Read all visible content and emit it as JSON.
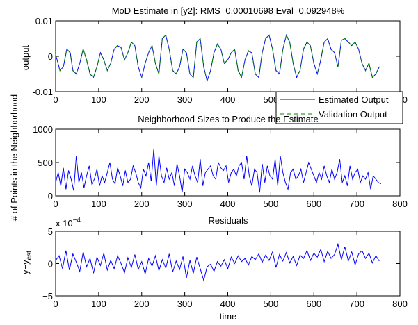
{
  "figure": {
    "xlabel": "time"
  },
  "colors": {
    "estimated": "#0000ff",
    "validation": "#008000",
    "axes": "#000000"
  },
  "chart_data": [
    {
      "type": "line",
      "title": "MoD Estimate in [y2]:  RMS=0.00010698   Eval=0.092948%",
      "xlabel": "",
      "ylabel": "output",
      "xlim": [
        0,
        800
      ],
      "ylim": [
        -0.01,
        0.01
      ],
      "xticks": [
        0,
        100,
        200,
        300,
        400,
        500,
        600,
        700,
        800
      ],
      "yticks": [
        -0.01,
        0,
        0.01
      ],
      "ytick_labels": [
        "-0.01",
        "0",
        "0.01"
      ],
      "legend": {
        "placement": "bottom-right",
        "entries": [
          "Estimated Output",
          "Validation Output"
        ]
      },
      "series": [
        {
          "name": "Estimated Output",
          "style": "solid",
          "color": "#0000ff",
          "x": [
            0,
            10,
            18,
            26,
            34,
            40,
            48,
            56,
            64,
            72,
            80,
            88,
            96,
            104,
            112,
            120,
            128,
            136,
            144,
            152,
            160,
            168,
            176,
            184,
            192,
            200,
            208,
            216,
            224,
            232,
            240,
            248,
            256,
            264,
            272,
            280,
            288,
            296,
            304,
            312,
            320,
            328,
            336,
            344,
            352,
            360,
            368,
            376,
            384,
            392,
            400,
            408,
            416,
            424,
            432,
            440,
            448,
            456,
            464,
            472,
            480,
            488,
            496,
            504,
            512,
            520,
            528,
            536,
            544,
            552,
            560,
            568,
            576,
            584,
            592,
            600,
            608,
            616,
            624,
            632,
            640,
            648,
            656,
            664,
            672,
            680,
            688,
            696,
            704,
            712,
            720,
            728,
            736,
            744,
            752
          ],
          "y": [
            0.0005,
            -0.004,
            -0.003,
            0.002,
            0.001,
            -0.004,
            -0.005,
            -0.002,
            0.002,
            -0.001,
            -0.005,
            -0.006,
            -0.003,
            0.001,
            -0.001,
            -0.004,
            -0.002,
            0.002,
            0.003,
            0.0025,
            -0.001,
            0.001,
            0.004,
            0.003,
            -0.003,
            -0.006,
            -0.002,
            0.001,
            0.003,
            -0.002,
            -0.005,
            0.005,
            0.006,
            0.002,
            -0.004,
            -0.005,
            -0.003,
            0.002,
            0.001,
            -0.005,
            -0.006,
            0.004,
            0.005,
            -0.003,
            -0.007,
            -0.004,
            0.001,
            0.0035,
            0.002,
            -0.002,
            -0.001,
            0.001,
            0.002,
            -0.004,
            -0.006,
            -0.001,
            0.0015,
            0.001,
            -0.005,
            -0.006,
            0.001,
            0.005,
            0.006,
            0.002,
            -0.004,
            -0.005,
            0.002,
            0.006,
            0.004,
            -0.002,
            -0.006,
            -0.004,
            0.002,
            0.004,
            0.003,
            -0.002,
            -0.005,
            -0.001,
            0.004,
            0.005,
            0.002,
            0.001,
            -0.003,
            0.0045,
            0.005,
            0.004,
            0.003,
            0.004,
            0.002,
            -0.002,
            -0.004,
            -0.002,
            -0.006,
            -0.005,
            -0.003
          ]
        },
        {
          "name": "Validation Output",
          "style": "dashed",
          "color": "#008000",
          "x": [
            0,
            10,
            18,
            26,
            34,
            40,
            48,
            56,
            64,
            72,
            80,
            88,
            96,
            104,
            112,
            120,
            128,
            136,
            144,
            152,
            160,
            168,
            176,
            184,
            192,
            200,
            208,
            216,
            224,
            232,
            240,
            248,
            256,
            264,
            272,
            280,
            288,
            296,
            304,
            312,
            320,
            328,
            336,
            344,
            352,
            360,
            368,
            376,
            384,
            392,
            400,
            408,
            416,
            424,
            432,
            440,
            448,
            456,
            464,
            472,
            480,
            488,
            496,
            504,
            512,
            520,
            528,
            536,
            544,
            552,
            560,
            568,
            576,
            584,
            592,
            600,
            608,
            616,
            624,
            632,
            640,
            648,
            656,
            664,
            672,
            680,
            688,
            696,
            704,
            712,
            720,
            728,
            736,
            744,
            752
          ],
          "y": [
            0.0006,
            -0.0041,
            -0.0029,
            0.0021,
            0.0009,
            -0.0041,
            -0.0049,
            -0.0019,
            0.0021,
            -0.0011,
            -0.0051,
            -0.0059,
            -0.0029,
            0.0011,
            -0.0011,
            -0.0041,
            -0.0019,
            0.0021,
            0.0031,
            0.0024,
            -0.0011,
            0.0011,
            0.0041,
            0.0029,
            -0.0031,
            -0.0059,
            -0.0019,
            0.0011,
            0.0031,
            -0.0021,
            -0.0051,
            0.0051,
            0.0059,
            0.0019,
            -0.0041,
            -0.0049,
            -0.0029,
            0.0021,
            0.0009,
            -0.0051,
            -0.0059,
            0.0041,
            0.0049,
            -0.0031,
            -0.0069,
            -0.0041,
            0.0011,
            0.0034,
            0.0019,
            -0.0021,
            -0.0009,
            0.0011,
            0.0019,
            -0.0041,
            -0.0059,
            -0.0009,
            0.0016,
            0.0009,
            -0.0051,
            -0.0059,
            0.0011,
            0.0051,
            0.0059,
            0.0019,
            -0.0041,
            -0.0049,
            0.0021,
            0.0059,
            0.0039,
            -0.0021,
            -0.0059,
            -0.0039,
            0.0021,
            0.0041,
            0.0029,
            -0.0021,
            -0.0049,
            -0.0009,
            0.0041,
            0.0049,
            0.0019,
            0.0011,
            -0.0031,
            0.0044,
            0.0051,
            0.0041,
            0.0029,
            0.0041,
            0.0019,
            -0.0021,
            -0.0041,
            -0.0019,
            -0.0059,
            -0.0049,
            -0.0029
          ]
        }
      ]
    },
    {
      "type": "line",
      "title": "Neighborhood Sizes to Produce the Estimate",
      "xlabel": "",
      "ylabel": "# of Points in the Neighborhood",
      "xlim": [
        0,
        800
      ],
      "ylim": [
        0,
        1000
      ],
      "xticks": [
        0,
        100,
        200,
        300,
        400,
        500,
        600,
        700,
        800
      ],
      "yticks": [
        0,
        500,
        1000
      ],
      "ytick_labels": [
        "0",
        "500",
        "1000"
      ],
      "series": [
        {
          "color": "#0000ff",
          "style": "solid",
          "x": [
            0,
            6,
            12,
            18,
            24,
            30,
            36,
            42,
            48,
            54,
            60,
            66,
            72,
            78,
            84,
            90,
            96,
            102,
            108,
            114,
            120,
            126,
            132,
            138,
            144,
            150,
            156,
            162,
            168,
            174,
            180,
            186,
            192,
            198,
            204,
            210,
            216,
            222,
            228,
            234,
            240,
            246,
            252,
            258,
            264,
            270,
            276,
            282,
            288,
            294,
            300,
            306,
            312,
            318,
            324,
            330,
            336,
            342,
            348,
            354,
            360,
            366,
            372,
            378,
            384,
            390,
            396,
            402,
            408,
            414,
            420,
            426,
            432,
            438,
            444,
            450,
            456,
            462,
            468,
            474,
            480,
            486,
            492,
            498,
            504,
            510,
            516,
            522,
            528,
            534,
            540,
            546,
            552,
            558,
            564,
            570,
            576,
            582,
            588,
            594,
            600,
            606,
            612,
            618,
            624,
            630,
            636,
            642,
            648,
            654,
            660,
            666,
            672,
            678,
            684,
            690,
            696,
            702,
            708,
            714,
            720,
            726,
            732,
            738,
            744,
            750,
            756
          ],
          "y": [
            200,
            350,
            150,
            420,
            100,
            380,
            250,
            80,
            600,
            200,
            350,
            120,
            300,
            450,
            180,
            250,
            400,
            150,
            300,
            200,
            350,
            500,
            250,
            180,
            420,
            300,
            150,
            380,
            200,
            250,
            450,
            350,
            200,
            120,
            400,
            300,
            500,
            220,
            700,
            150,
            600,
            300,
            200,
            420,
            250,
            350,
            150,
            480,
            300,
            50,
            400,
            350,
            250,
            450,
            300,
            200,
            550,
            150,
            350,
            400,
            450,
            300,
            250,
            500,
            420,
            380,
            450,
            200,
            350,
            400,
            300,
            450,
            500,
            250,
            600,
            300,
            150,
            400,
            350,
            50,
            480,
            200,
            450,
            300,
            250,
            550,
            150,
            600,
            350,
            200,
            100,
            350,
            400,
            250,
            300,
            400,
            200,
            350,
            500,
            400,
            300,
            200,
            350,
            250,
            450,
            300,
            200,
            400,
            250,
            350,
            550,
            200,
            300,
            150,
            450,
            250,
            350,
            400,
            200,
            300,
            250,
            350,
            100,
            300,
            250,
            200,
            180
          ]
        }
      ]
    },
    {
      "type": "line",
      "title": "Residuals",
      "xlabel": "time",
      "ylabel": "y−y_est",
      "ylabel_main": "y−y",
      "ylabel_sub": "est",
      "scale_label": "x 10",
      "scale_exponent": "−4",
      "xlim": [
        0,
        800
      ],
      "ylim": [
        -5,
        5
      ],
      "xticks": [
        0,
        100,
        200,
        300,
        400,
        500,
        600,
        700,
        800
      ],
      "yticks": [
        -5,
        0,
        5
      ],
      "ytick_labels": [
        "−5",
        "0",
        "5"
      ],
      "series": [
        {
          "color": "#0000ff",
          "style": "solid",
          "x": [
            0,
            8,
            16,
            24,
            32,
            40,
            48,
            56,
            64,
            72,
            80,
            88,
            96,
            104,
            112,
            120,
            128,
            136,
            144,
            152,
            160,
            168,
            176,
            184,
            192,
            200,
            208,
            216,
            224,
            232,
            240,
            248,
            256,
            264,
            272,
            280,
            288,
            296,
            304,
            312,
            320,
            328,
            336,
            344,
            352,
            360,
            368,
            376,
            384,
            392,
            400,
            408,
            416,
            424,
            432,
            440,
            448,
            456,
            464,
            472,
            480,
            488,
            496,
            504,
            512,
            520,
            528,
            536,
            544,
            552,
            560,
            568,
            576,
            584,
            592,
            600,
            608,
            616,
            624,
            632,
            640,
            648,
            656,
            664,
            672,
            680,
            688,
            696,
            704,
            712,
            720,
            728,
            736,
            744,
            752
          ],
          "y": [
            0.5,
            1.2,
            -0.8,
            2.0,
            -1.0,
            1.5,
            0.2,
            -1.2,
            1.8,
            -0.5,
            0.8,
            -1.5,
            1.0,
            -0.3,
            1.6,
            -1.0,
            0.5,
            -0.8,
            1.2,
            0.0,
            -1.4,
            0.9,
            -0.6,
            1.4,
            -0.9,
            0.3,
            -1.6,
            0.8,
            -0.4,
            1.2,
            -1.1,
            0.6,
            -0.7,
            1.5,
            -1.3,
            0.4,
            -0.9,
            1.1,
            -2.2,
            0.5,
            -1.5,
            1.0,
            -0.8,
            -2.6,
            -0.5,
            -0.1,
            -1.2,
            0.3,
            -0.4,
            0.6,
            -0.8,
            1.0,
            0.0,
            1.2,
            0.3,
            0.8,
            -0.2,
            1.1,
            0.6,
            1.5,
            0.2,
            1.3,
            0.5,
            1.8,
            -0.6,
            1.4,
            0.4,
            1.7,
            0.1,
            1.1,
            -0.3,
            1.3,
            0.8,
            2.0,
            0.5,
            1.6,
            1.0,
            2.2,
            0.3,
            1.9,
            0.8,
            1.4,
            3.0,
            0.6,
            2.6,
            0.4,
            1.8,
            -0.2,
            1.5,
            2.0,
            0.8,
            1.6,
            0.1,
            1.2,
            0.4
          ]
        }
      ]
    }
  ]
}
